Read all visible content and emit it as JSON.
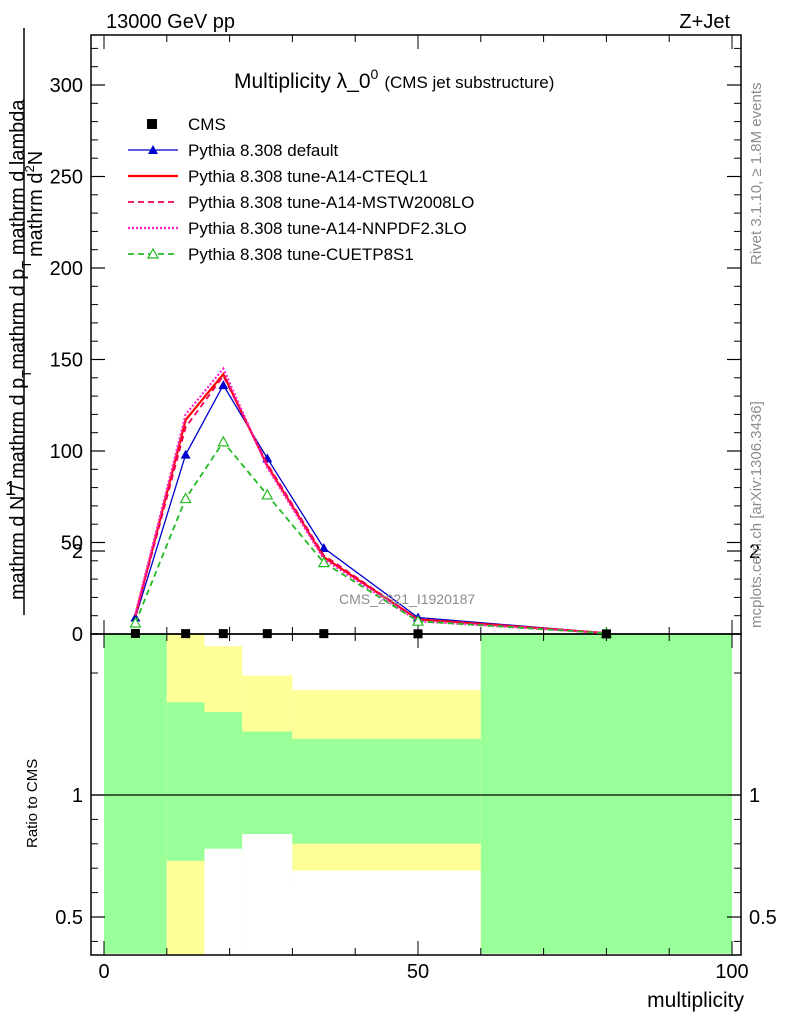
{
  "header": {
    "left": "13000 GeV pp",
    "right": "Z+Jet"
  },
  "side": {
    "rivet": "Rivet 3.1.10, ≥ 1.8M events",
    "mcplots": "mcplots.cern.ch [arXiv:1306.3436]"
  },
  "watermark": "CMS_2021_I1920187",
  "chart_data": {
    "type": "line",
    "title": "Multiplicity λ_0",
    "title_sup": "0",
    "title_small": "(CMS jet substructure)",
    "xlabel": "multiplicity",
    "ylabel_top": {
      "numer": "mathrm d",
      "numer_sup": "2",
      "numer_tail": "N",
      "denom": "mathrm d p",
      "denom_sub": "T",
      "denom_tail": " mathrm d lambda"
    },
    "ylabel_left": {
      "numer": "1",
      "denom": "mathrm d N / mathrm d p",
      "denom_sub": "T"
    },
    "ratio_ylabel": "Ratio to CMS",
    "xlim": [
      -2,
      100
    ],
    "ylim": [
      0,
      325
    ],
    "ratio_ylim": [
      0.35,
      2.3
    ],
    "x_ticks": [
      0,
      50,
      100
    ],
    "y_ticks": [
      0,
      50,
      100,
      150,
      200,
      250,
      300
    ],
    "ratio_ticks": [
      0.5,
      1,
      2
    ],
    "legend": [
      "CMS",
      "Pythia 8.308 default",
      "Pythia 8.308 tune-A14-CTEQL1",
      "Pythia 8.308 tune-A14-MSTW2008LO",
      "Pythia 8.308 tune-A14-NNPDF2.3LO",
      "Pythia 8.308 tune-CUETP8S1"
    ],
    "data": {
      "name": "CMS",
      "x": [
        5,
        13,
        19,
        26,
        35,
        50,
        80
      ],
      "y": [
        0.3,
        0.2,
        0.2,
        0.2,
        0.2,
        0.1,
        0.05
      ]
    },
    "series": [
      {
        "name": "Pythia 8.308 default",
        "color": "#0000cc",
        "style": "solid",
        "marker": "triangle-filled",
        "x": [
          5,
          13,
          19,
          26,
          35,
          50,
          80
        ],
        "y": [
          9,
          98,
          136,
          96,
          47,
          9,
          0.5
        ]
      },
      {
        "name": "Pythia 8.308 tune-A14-CTEQL1",
        "color": "#ff0000",
        "style": "solid-thick",
        "marker": "none",
        "x": [
          5,
          13,
          19,
          26,
          35,
          50,
          80
        ],
        "y": [
          10,
          117,
          142,
          92,
          42,
          8,
          0.5
        ]
      },
      {
        "name": "Pythia 8.308 tune-A14-MSTW2008LO",
        "color": "#ee0055",
        "style": "dashed",
        "marker": "none",
        "x": [
          5,
          13,
          19,
          26,
          35,
          50,
          80
        ],
        "y": [
          10,
          113,
          141,
          93,
          43,
          8,
          0.5
        ]
      },
      {
        "name": "Pythia 8.308 tune-A14-NNPDF2.3LO",
        "color": "#ff22cc",
        "style": "dotted",
        "marker": "none",
        "x": [
          5,
          13,
          19,
          26,
          35,
          50,
          80
        ],
        "y": [
          11,
          120,
          145,
          91,
          41,
          7,
          0.5
        ]
      },
      {
        "name": "Pythia 8.308 tune-CUETP8S1",
        "color": "#22bb22",
        "style": "dashed",
        "marker": "triangle-open",
        "x": [
          5,
          13,
          19,
          26,
          35,
          50,
          80
        ],
        "y": [
          6,
          74,
          105,
          76,
          39,
          7,
          0.4
        ]
      }
    ],
    "ratio_bands": {
      "bins": [
        [
          0,
          10
        ],
        [
          10,
          16
        ],
        [
          16,
          22
        ],
        [
          22,
          30
        ],
        [
          30,
          60
        ],
        [
          60,
          100
        ]
      ],
      "stat_lo": [
        0.35,
        0.35,
        0.35,
        0.63,
        0.8,
        0.35
      ],
      "stat_hi": [
        2.05,
        1.38,
        1.34,
        1.26,
        1.23,
        2.2
      ],
      "tot_lo": [
        0.35,
        0.35,
        0.35,
        0.35,
        0.35,
        0.35
      ],
      "tot_hi": [
        2.3,
        1.68,
        1.61,
        1.49,
        1.43,
        2.3
      ],
      "tot_lo_yellow": [
        0.35,
        0.73,
        0.78,
        0.84,
        0.69,
        0.35
      ],
      "white_below": [
        0.35,
        0.35,
        0.35,
        0.35,
        0.35,
        0.35
      ]
    },
    "colors": {
      "stat": "#99ff99",
      "total": "#ffff99"
    }
  }
}
